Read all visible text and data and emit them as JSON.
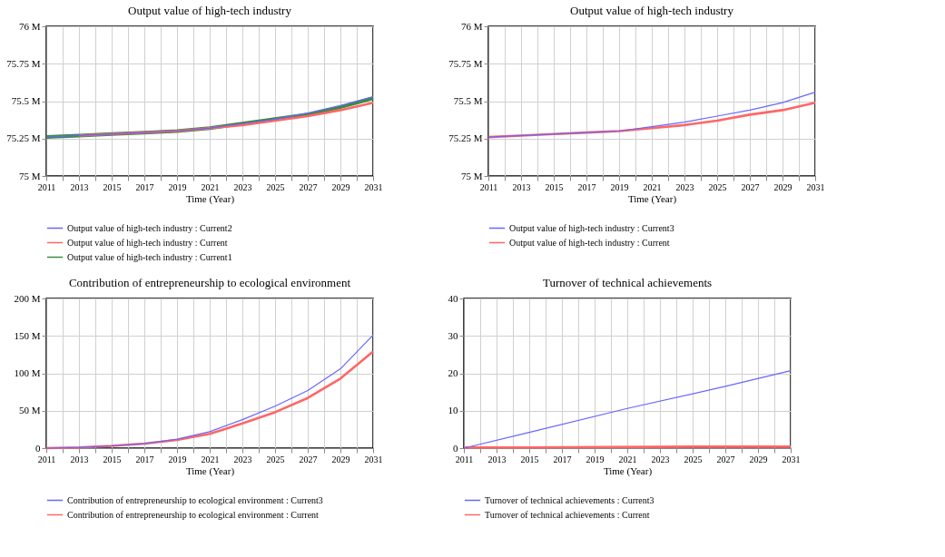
{
  "chart_data": [
    {
      "type": "line",
      "title": "Output value of high-tech industry",
      "xlabel": "Time (Year)",
      "x": [
        2011,
        2013,
        2015,
        2017,
        2019,
        2021,
        2023,
        2025,
        2027,
        2029,
        2031
      ],
      "xlim": [
        2011,
        2031
      ],
      "xticks": [
        2011,
        {
          "value": 2012,
          "label": null
        },
        2013,
        {
          "value": 2014,
          "label": null
        },
        2015,
        {
          "value": 2016,
          "label": null
        },
        2017,
        {
          "value": 2018,
          "label": null
        },
        2019,
        {
          "value": 2020,
          "label": null
        },
        2021,
        {
          "value": 2022,
          "label": null
        },
        2023,
        {
          "value": 2024,
          "label": null
        },
        2025,
        {
          "value": 2026,
          "label": null
        },
        2027,
        {
          "value": 2028,
          "label": null
        },
        2029,
        {
          "value": 2030,
          "label": null
        },
        2031
      ],
      "ylim": [
        75,
        76
      ],
      "yticks": [
        {
          "value": 75,
          "label": "75 M"
        },
        {
          "value": 75.25,
          "label": "75.25 M"
        },
        {
          "value": 75.5,
          "label": "75.5 M"
        },
        {
          "value": 75.75,
          "label": "75.75 M"
        },
        {
          "value": 76,
          "label": "76 M"
        }
      ],
      "grid": true,
      "legend": "bottom",
      "series": [
        {
          "name": "Output value of high-tech industry : Current2",
          "color": "#6666ff",
          "values": [
            75.26,
            75.27,
            75.28,
            75.29,
            75.3,
            75.32,
            75.35,
            75.38,
            75.42,
            75.47,
            75.53
          ]
        },
        {
          "name": "Output value of high-tech industry : Current",
          "color": "#ff6666",
          "values": [
            null,
            75.27,
            75.28,
            75.29,
            75.3,
            75.32,
            75.34,
            75.37,
            75.4,
            75.44,
            75.49
          ]
        },
        {
          "name": "Output value of high-tech industry : Current1",
          "color": "#3c8c3c",
          "values": [
            75.26,
            75.27,
            75.28,
            75.29,
            75.3,
            75.32,
            75.35,
            75.38,
            75.41,
            75.46,
            75.52
          ]
        }
      ]
    },
    {
      "type": "line",
      "title": "Output value of high-tech industry",
      "xlabel": "Time (Year)",
      "x": [
        2011,
        2013,
        2015,
        2017,
        2019,
        2021,
        2023,
        2025,
        2027,
        2029,
        2031
      ],
      "xlim": [
        2011,
        2031
      ],
      "xticks": [
        2011,
        {
          "value": 2012,
          "label": null
        },
        2013,
        {
          "value": 2014,
          "label": null
        },
        2015,
        {
          "value": 2016,
          "label": null
        },
        2017,
        {
          "value": 2018,
          "label": null
        },
        2019,
        {
          "value": 2020,
          "label": null
        },
        2021,
        {
          "value": 2022,
          "label": null
        },
        2023,
        {
          "value": 2024,
          "label": null
        },
        2025,
        {
          "value": 2026,
          "label": null
        },
        2027,
        {
          "value": 2028,
          "label": null
        },
        2029,
        {
          "value": 2030,
          "label": null
        },
        2031
      ],
      "ylim": [
        75,
        76
      ],
      "yticks": [
        {
          "value": 75,
          "label": "75 M"
        },
        {
          "value": 75.25,
          "label": "75.25 M"
        },
        {
          "value": 75.5,
          "label": "75.5 M"
        },
        {
          "value": 75.75,
          "label": "75.75 M"
        },
        {
          "value": 76,
          "label": "76 M"
        }
      ],
      "grid": true,
      "legend": "bottom",
      "series": [
        {
          "name": "Output value of high-tech industry : Current3",
          "color": "#6666ff",
          "values": [
            75.26,
            75.27,
            75.28,
            75.29,
            75.3,
            75.33,
            75.36,
            75.4,
            75.44,
            75.49,
            75.56
          ]
        },
        {
          "name": "Output value of high-tech industry : Current",
          "color": "#ff6666",
          "values": [
            75.26,
            75.27,
            75.28,
            75.29,
            75.3,
            75.32,
            75.34,
            75.37,
            75.41,
            75.44,
            75.49
          ]
        }
      ]
    },
    {
      "type": "line",
      "title": "Contribution of entrepreneurship to ecological environment",
      "xlabel": "Time (Year)",
      "x": [
        2011,
        2013,
        2015,
        2017,
        2019,
        2021,
        2023,
        2025,
        2027,
        2029,
        2031
      ],
      "xlim": [
        2011,
        2031
      ],
      "xticks": [
        2011,
        {
          "value": 2012,
          "label": null
        },
        2013,
        {
          "value": 2014,
          "label": null
        },
        2015,
        {
          "value": 2016,
          "label": null
        },
        2017,
        {
          "value": 2018,
          "label": null
        },
        2019,
        {
          "value": 2020,
          "label": null
        },
        2021,
        {
          "value": 2022,
          "label": null
        },
        2023,
        {
          "value": 2024,
          "label": null
        },
        2025,
        {
          "value": 2026,
          "label": null
        },
        2027,
        {
          "value": 2028,
          "label": null
        },
        2029,
        {
          "value": 2030,
          "label": null
        },
        2031
      ],
      "ylim": [
        0,
        200
      ],
      "yticks": [
        0,
        {
          "value": 50,
          "label": "50 M"
        },
        {
          "value": 100,
          "label": "100 M"
        },
        {
          "value": 150,
          "label": "150 M"
        },
        {
          "value": 200,
          "label": "200 M"
        }
      ],
      "grid": true,
      "legend": "bottom",
      "series": [
        {
          "name": "Contribution of entrepreneurship to ecological environment : Current3",
          "color": "#6666ff",
          "values": [
            0,
            1,
            3,
            6,
            12,
            22,
            38,
            56,
            77,
            106,
            151
          ]
        },
        {
          "name": "Contribution of entrepreneurship to ecological environment : Current",
          "color": "#ff6666",
          "values": [
            0,
            1,
            3,
            6,
            11,
            19,
            33,
            48,
            67,
            93,
            129
          ]
        }
      ]
    },
    {
      "type": "line",
      "title": "Turnover of technical achievements",
      "xlabel": "Time (Year)",
      "xlim": [
        2011,
        2031
      ],
      "xticks": [
        2011,
        {
          "value": 2012,
          "label": null
        },
        2013,
        {
          "value": 2014,
          "label": null
        },
        2015,
        {
          "value": 2016,
          "label": null
        },
        2017,
        {
          "value": 2018,
          "label": null
        },
        2019,
        {
          "value": 2020,
          "label": null
        },
        2021,
        {
          "value": 2022,
          "label": null
        },
        2023,
        {
          "value": 2024,
          "label": null
        },
        2025,
        {
          "value": 2026,
          "label": null
        },
        2027,
        {
          "value": 2028,
          "label": null
        },
        2029,
        {
          "value": 2030,
          "label": null
        },
        2031
      ],
      "ylim": [
        0,
        40
      ],
      "yticks": [
        0,
        10,
        20,
        30,
        40
      ],
      "grid": true,
      "legend": "bottom",
      "series": [
        {
          "name": "Turnover of technical achievements : Current3",
          "color": "#6666ff",
          "x": [
            2011,
            2015,
            2021,
            2027,
            2031
          ],
          "values": [
            0,
            4.2,
            10.6,
            16.5,
            20.7
          ]
        },
        {
          "name": "Turnover of technical achievements : Current",
          "color": "#ff6666",
          "x": [
            2011,
            2014.5,
            2025.5,
            2031
          ],
          "values": [
            0.2,
            0.2,
            0.4,
            0.4
          ]
        }
      ]
    }
  ]
}
